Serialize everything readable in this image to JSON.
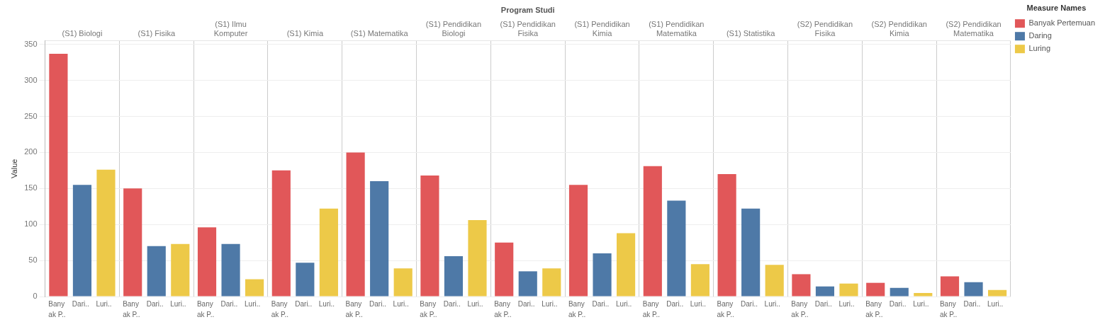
{
  "chart_data": {
    "type": "bar",
    "xlabel": "Program Studi",
    "ylabel": "Value",
    "legend_title": "Measure Names",
    "categories": [
      "(S1) Biologi",
      "(S1) Fisika",
      "(S1) Ilmu Komputer",
      "(S1) Kimia",
      "(S1) Matematika",
      "(S1) Pendidikan Biologi",
      "(S1) Pendidikan Fisika",
      "(S1) Pendidikan Kimia",
      "(S1) Pendidikan Matematika",
      "(S1) Statistika",
      "(S2) Pendidikan Fisika",
      "(S2) Pendidikan Kimia",
      "(S2) Pendidikan Matematika"
    ],
    "series": [
      {
        "name": "Banyak Pertemuan",
        "color": "#e15759",
        "values": [
          337,
          150,
          96,
          175,
          200,
          168,
          75,
          155,
          181,
          170,
          31,
          19,
          28
        ]
      },
      {
        "name": "Daring",
        "color": "#4e79a7",
        "values": [
          155,
          70,
          73,
          47,
          160,
          56,
          35,
          60,
          133,
          122,
          14,
          12,
          20
        ]
      },
      {
        "name": "Luring",
        "color": "#edc948",
        "values": [
          176,
          73,
          24,
          122,
          39,
          106,
          39,
          88,
          45,
          44,
          18,
          5,
          9
        ]
      }
    ],
    "annotations": [
      "Bany ak P..",
      "Dari..",
      "Luri.."
    ],
    "ylim": [
      0,
      355
    ],
    "yticks": [
      0,
      50,
      100,
      150,
      200,
      250,
      300,
      350
    ],
    "grid": true,
    "legend": "top right"
  }
}
